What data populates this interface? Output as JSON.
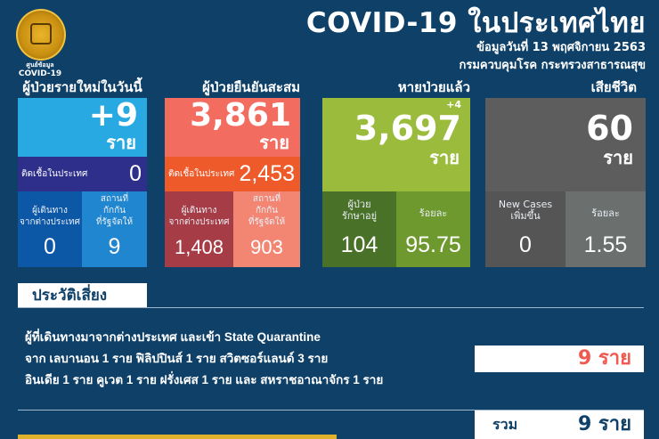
{
  "logo": {
    "caption_line1": "ศูนย์ข้อมูล",
    "caption_line2": "COVID-19"
  },
  "header": {
    "title": "COVID-19 ในประเทศไทย",
    "date": "ข้อมูลวันที่ 13 พฤศจิกายน 2563",
    "org": "กรมควบคุมโรค กระทรวงสาธารณสุข"
  },
  "new_cases": {
    "heading": "ผู้ป่วยรายใหม่ในวันนี้",
    "value": "+9",
    "unit": "ราย",
    "local_label": "ติดเชื้อในประเทศ",
    "local_value": "0",
    "abroad_label": "ผู้เดินทาง\nจากต่างประเทศ",
    "abroad_value": "0",
    "sq_label": "สถานที่\nกักกัน\nที่รัฐจัดให้",
    "sq_value": "9"
  },
  "cumulative": {
    "heading": "ผู้ป่วยยืนยันสะสม",
    "value": "3,861",
    "unit": "ราย",
    "local_label": "ติดเชื้อในประเทศ",
    "local_value": "2,453",
    "abroad_label": "ผู้เดินทาง\nจากต่างประเทศ",
    "abroad_value": "1,408",
    "sq_label": "สถานที่\nกักกัน\nที่รัฐจัดให้",
    "sq_value": "903"
  },
  "recovered": {
    "heading": "หายป่วยแล้ว",
    "delta": "+4",
    "value": "3,697",
    "unit": "ราย",
    "treating_label": "ผู้ป่วย\nรักษาอยู่",
    "treating_value": "104",
    "pct_label": "ร้อยละ",
    "pct_value": "95.75"
  },
  "deaths": {
    "heading": "เสียชีวิต",
    "value": "60",
    "unit": "ราย",
    "new_label": "New Cases\nเพิ่มขึ้น",
    "new_value": "0",
    "pct_label": "ร้อยละ",
    "pct_value": "1.55"
  },
  "risk": {
    "heading": "ประวัติเสี่ยง",
    "line1": "ผู้ที่เดินทางมาจากต่างประเทศ และเข้า State Quarantine",
    "line2": "จาก เลบานอน 1 ราย ฟิลิปปินส์ 1 ราย สวิตซอร์แลนด์ 3 ราย",
    "line3": "อินเดีย 1 ราย คูเวต 1 ราย ฝรั่งเศส 1 ราย และ สหราชอาณาจักร 1 ราย",
    "count": "9 ราย",
    "total_label": "รวม",
    "total_value": "9 ราย"
  },
  "colors": {
    "bg": "#0e4068",
    "blue": "#29a9e1",
    "red": "#f26d60",
    "green": "#9bbb3c",
    "gray": "#5d5d5d",
    "accent_red": "#ef5a50",
    "gold": "#e0b12a"
  }
}
